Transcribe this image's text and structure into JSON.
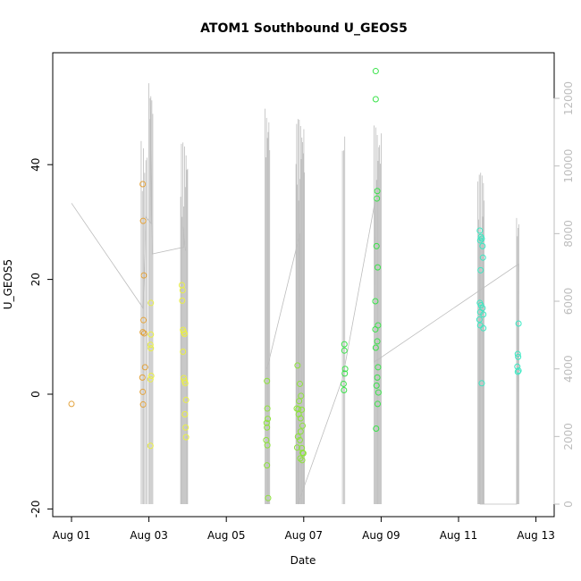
{
  "chart_data": {
    "type": "scatter",
    "title": "ATOM1 Southbound U_GEOS5",
    "xlabel": "Date",
    "ylabel": "U_GEOS5",
    "x_ticks": [
      "Aug 01",
      "Aug 03",
      "Aug 05",
      "Aug 07",
      "Aug 09",
      "Aug 11",
      "Aug 13"
    ],
    "xlim_days": [
      0,
      12.6
    ],
    "ylim": [
      -21,
      57
    ],
    "y_ticks": [
      -20,
      0,
      20,
      40
    ],
    "y2_ticks": [
      0,
      2000,
      4000,
      6000,
      8000,
      10000,
      12000
    ],
    "y2lim": [
      -280,
      13000
    ],
    "grid": false,
    "series": [
      {
        "color": "#e3a23a",
        "points": [
          [
            0.0,
            -1.7
          ],
          [
            1.84,
            36.6
          ],
          [
            1.85,
            30.2
          ],
          [
            1.87,
            20.7
          ],
          [
            1.86,
            12.9
          ],
          [
            1.84,
            10.8
          ],
          [
            1.88,
            10.6
          ],
          [
            1.9,
            4.7
          ],
          [
            1.83,
            2.9
          ],
          [
            1.84,
            0.4
          ],
          [
            1.85,
            -1.8
          ]
        ]
      },
      {
        "color": "#eaef45",
        "points": [
          [
            2.05,
            15.9
          ],
          [
            2.05,
            10.4
          ],
          [
            2.04,
            8.6
          ],
          [
            2.05,
            8.0
          ],
          [
            2.06,
            3.2
          ],
          [
            2.04,
            2.6
          ],
          [
            2.04,
            -9.0
          ],
          [
            2.85,
            19.0
          ],
          [
            2.87,
            18.1
          ],
          [
            2.86,
            16.3
          ],
          [
            2.88,
            11.2
          ],
          [
            2.9,
            10.8
          ],
          [
            2.92,
            10.5
          ],
          [
            2.88,
            7.4
          ],
          [
            2.9,
            2.8
          ],
          [
            2.92,
            2.3
          ],
          [
            2.94,
            1.9
          ],
          [
            2.96,
            -1.0
          ],
          [
            2.93,
            -3.5
          ],
          [
            2.95,
            -5.8
          ],
          [
            2.96,
            -7.5
          ]
        ]
      },
      {
        "color": "#8de33a",
        "points": [
          [
            5.05,
            2.3
          ],
          [
            5.06,
            -2.5
          ],
          [
            5.07,
            -4.3
          ],
          [
            5.04,
            -5.0
          ],
          [
            5.05,
            -5.8
          ],
          [
            5.03,
            -8.0
          ],
          [
            5.06,
            -8.9
          ],
          [
            5.05,
            -12.4
          ],
          [
            5.08,
            -18.1
          ],
          [
            5.84,
            5.0
          ],
          [
            5.9,
            1.8
          ],
          [
            5.93,
            -0.3
          ],
          [
            5.88,
            -1.2
          ],
          [
            5.82,
            -2.5
          ],
          [
            5.86,
            -2.6
          ],
          [
            5.95,
            -2.7
          ],
          [
            5.87,
            -3.5
          ],
          [
            5.92,
            -4.2
          ],
          [
            5.97,
            -5.5
          ],
          [
            5.92,
            -6.5
          ],
          [
            5.85,
            -7.4
          ],
          [
            5.9,
            -8.0
          ],
          [
            5.83,
            -9.3
          ],
          [
            5.95,
            -9.4
          ],
          [
            5.97,
            -10.2
          ],
          [
            5.99,
            -10.3
          ],
          [
            5.91,
            -11.2
          ],
          [
            5.96,
            -11.5
          ]
        ]
      },
      {
        "color": "#3ae34a",
        "points": [
          [
            7.05,
            8.7
          ],
          [
            7.05,
            7.6
          ],
          [
            7.07,
            4.4
          ],
          [
            7.06,
            3.6
          ],
          [
            7.03,
            1.8
          ],
          [
            7.04,
            0.7
          ],
          [
            7.86,
            56.3
          ],
          [
            7.86,
            51.4
          ],
          [
            7.9,
            35.4
          ],
          [
            7.89,
            34.1
          ],
          [
            7.88,
            25.8
          ],
          [
            7.91,
            22.1
          ],
          [
            7.85,
            16.2
          ],
          [
            7.92,
            12.0
          ],
          [
            7.85,
            11.3
          ],
          [
            7.9,
            9.2
          ],
          [
            7.86,
            8.1
          ],
          [
            7.92,
            4.7
          ],
          [
            7.9,
            2.9
          ],
          [
            7.88,
            1.5
          ],
          [
            7.93,
            0.3
          ],
          [
            7.91,
            -1.7
          ],
          [
            7.87,
            -6.0
          ]
        ]
      },
      {
        "color": "#3ae8c2",
        "points": [
          [
            10.55,
            28.5
          ],
          [
            10.58,
            27.4
          ],
          [
            10.6,
            27.1
          ],
          [
            10.56,
            26.8
          ],
          [
            10.62,
            25.8
          ],
          [
            10.63,
            23.8
          ],
          [
            10.57,
            21.6
          ],
          [
            10.55,
            15.9
          ],
          [
            10.58,
            15.5
          ],
          [
            10.62,
            15.0
          ],
          [
            10.56,
            14.3
          ],
          [
            10.64,
            13.9
          ],
          [
            10.54,
            13.0
          ],
          [
            10.56,
            12.0
          ],
          [
            10.64,
            11.5
          ],
          [
            10.6,
            1.9
          ],
          [
            11.55,
            12.3
          ],
          [
            11.53,
            7.0
          ],
          [
            11.54,
            6.5
          ],
          [
            11.52,
            4.8
          ],
          [
            11.55,
            4.1
          ],
          [
            11.53,
            3.9
          ]
        ]
      }
    ],
    "altitude_line_color": "#bdbdbd"
  }
}
